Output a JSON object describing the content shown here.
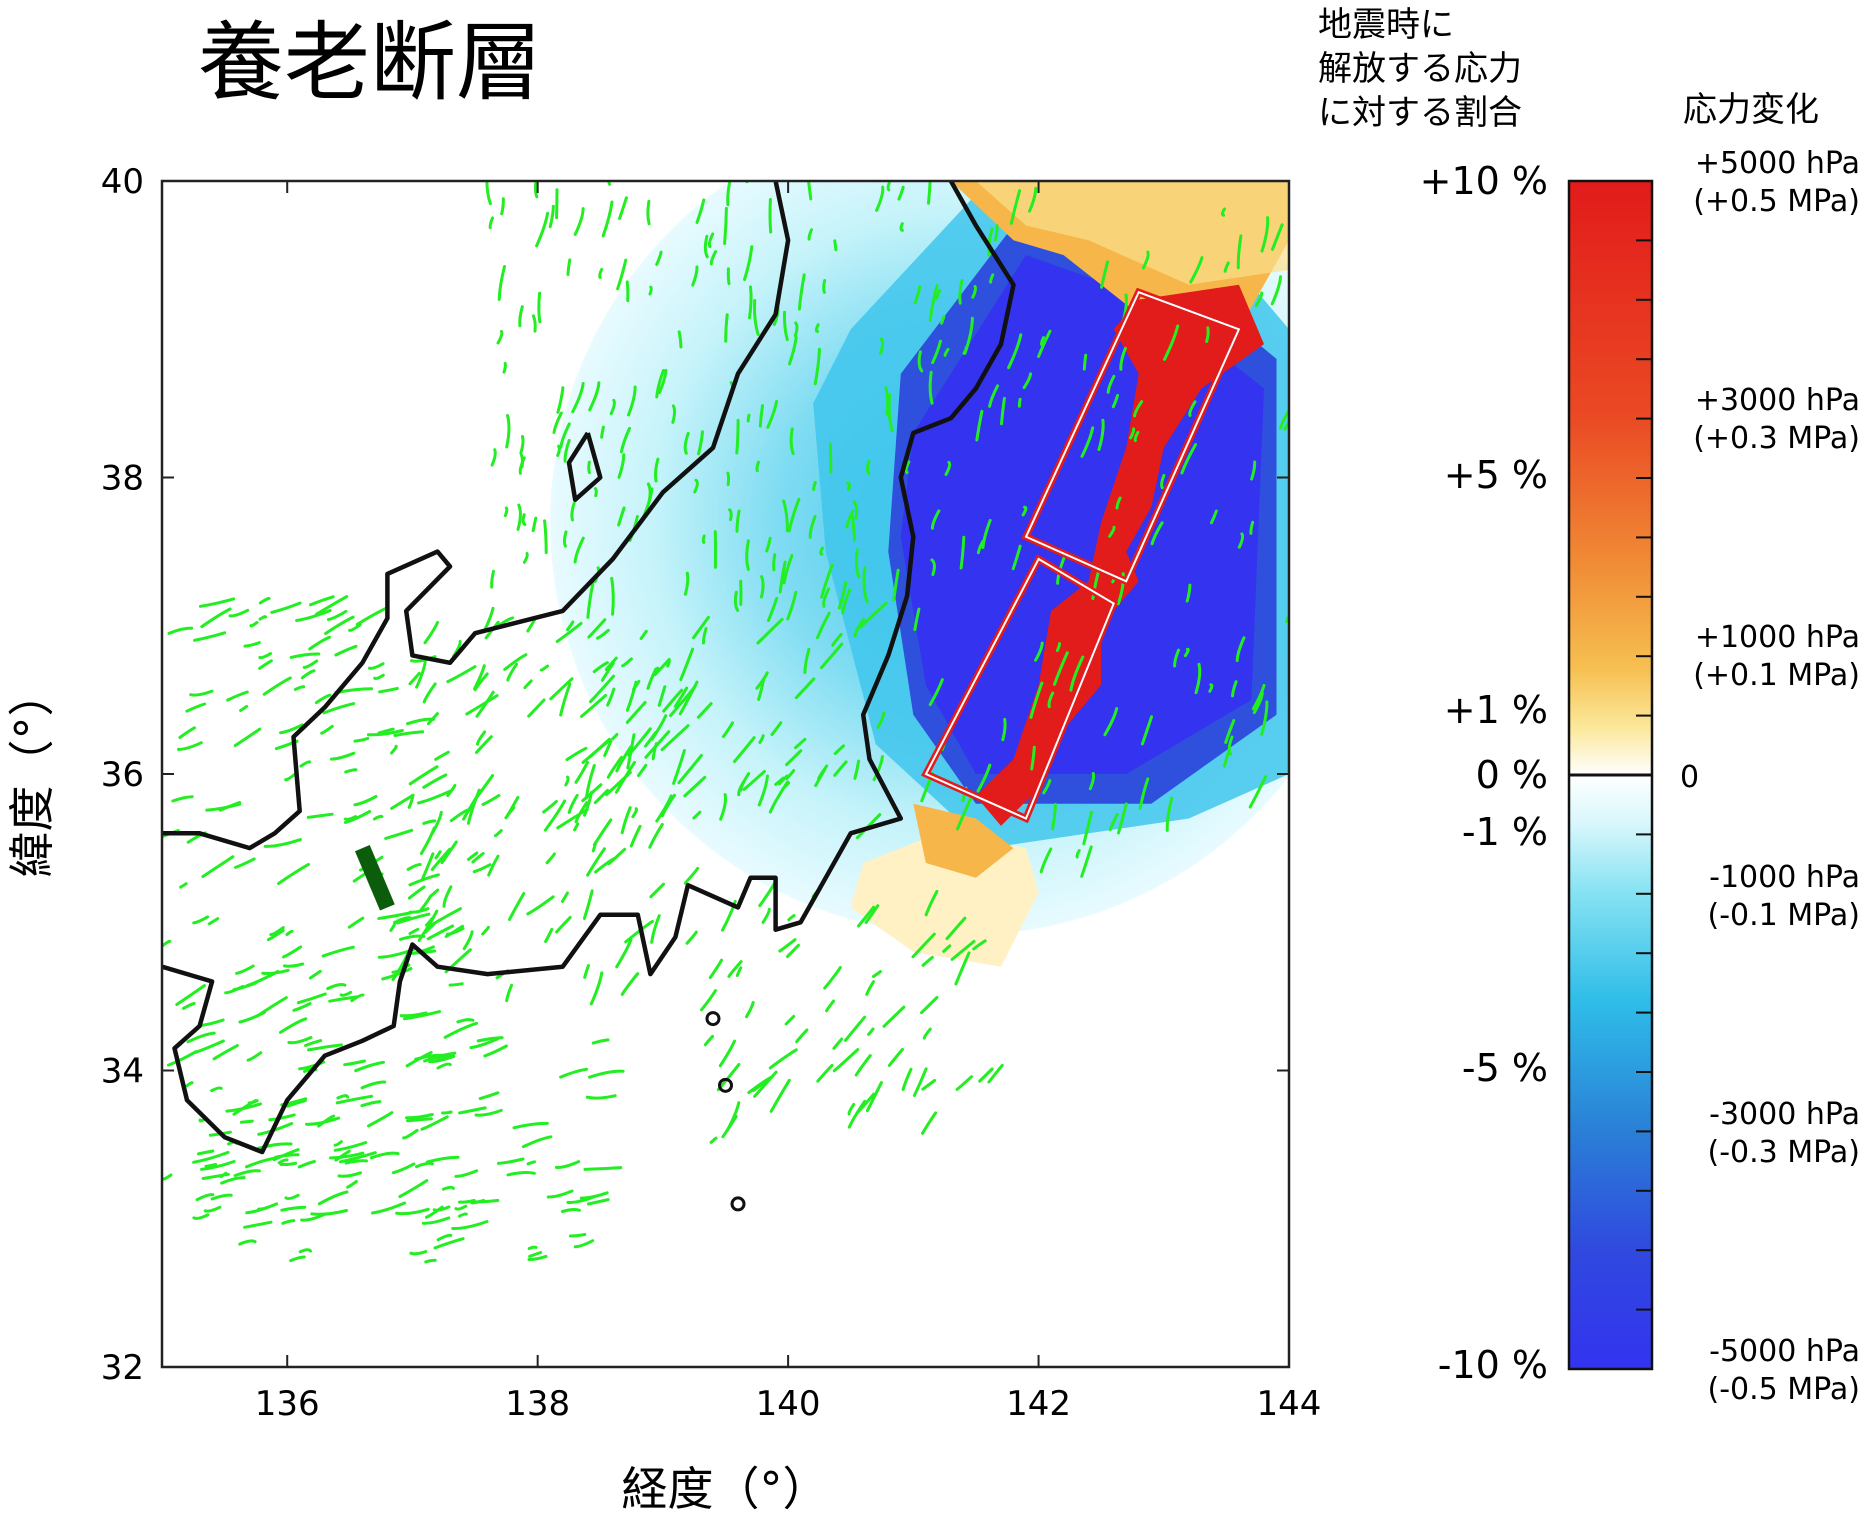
{
  "title": "養老断層",
  "colorbar": {
    "left_heading": [
      "地震時に",
      "解放する応力",
      "に対する割合"
    ],
    "right_heading": "応力変化",
    "percent_labels": [
      {
        "text": "+10 %",
        "value": 10
      },
      {
        "text": "+5 %",
        "value": 5
      },
      {
        "text": "+1 %",
        "value": 1
      },
      {
        "text": "0 %",
        "value": 0
      },
      {
        "text": "-1 %",
        "value": -1
      },
      {
        "text": "-5 %",
        "value": -5
      },
      {
        "text": "-10 %",
        "value": -10
      }
    ],
    "stress_labels": [
      {
        "lines": [
          "+5000 hPa",
          "(+0.5 MPa)"
        ],
        "value": 5000
      },
      {
        "lines": [
          "+3000 hPa",
          "(+0.3 MPa)"
        ],
        "value": 3000
      },
      {
        "lines": [
          "+1000 hPa",
          "(+0.1 MPa)"
        ],
        "value": 1000
      },
      {
        "lines": [
          "0"
        ],
        "value": 0
      },
      {
        "lines": [
          "-1000 hPa",
          "(-0.1 MPa)"
        ],
        "value": -1000
      },
      {
        "lines": [
          "-3000 hPa",
          "(-0.3 MPa)"
        ],
        "value": -3000
      },
      {
        "lines": [
          "-5000 hPa",
          "(-0.5 MPa)"
        ],
        "value": -5000
      }
    ],
    "range_hpa": [
      -5000,
      5000
    ],
    "colors": {
      "positive": [
        "#fff8e6",
        "#fbe08a",
        "#f6b64a",
        "#ef7a30",
        "#e8381f",
        "#e21b1b"
      ],
      "negative": [
        "#e8fbff",
        "#9fe9f4",
        "#3fc5ec",
        "#2a86d8",
        "#2f4fdd",
        "#3333f0"
      ]
    }
  },
  "chart_data": {
    "type": "heatmap",
    "title": "養老断層",
    "xlabel": "経度（°）",
    "ylabel": "緯度（°）",
    "xlim": [
      135,
      144
    ],
    "ylim": [
      32,
      40
    ],
    "xticks": [
      136,
      138,
      140,
      142,
      144
    ],
    "yticks": [
      32,
      34,
      36,
      38,
      40
    ],
    "source_fault": {
      "from": [
        136.6,
        35.5
      ],
      "to": [
        136.8,
        35.1
      ],
      "color": "#0b5d0b"
    },
    "receiver_faults": [
      {
        "corners": [
          [
            142.8,
            39.25
          ],
          [
            143.6,
            39.0
          ],
          [
            142.7,
            37.3
          ],
          [
            141.9,
            37.6
          ]
        ]
      },
      {
        "corners": [
          [
            142.0,
            37.45
          ],
          [
            142.6,
            37.15
          ],
          [
            141.9,
            35.7
          ],
          [
            141.1,
            36.0
          ]
        ]
      }
    ],
    "stress_zones": [
      {
        "kind": "negative-halo",
        "center": [
          141.4,
          37.7
        ],
        "radius_deg": 3.3,
        "level_hpa": -400
      },
      {
        "kind": "negative-core",
        "level_hpa": -5000
      },
      {
        "kind": "positive-band",
        "level_hpa": 5000
      }
    ]
  }
}
